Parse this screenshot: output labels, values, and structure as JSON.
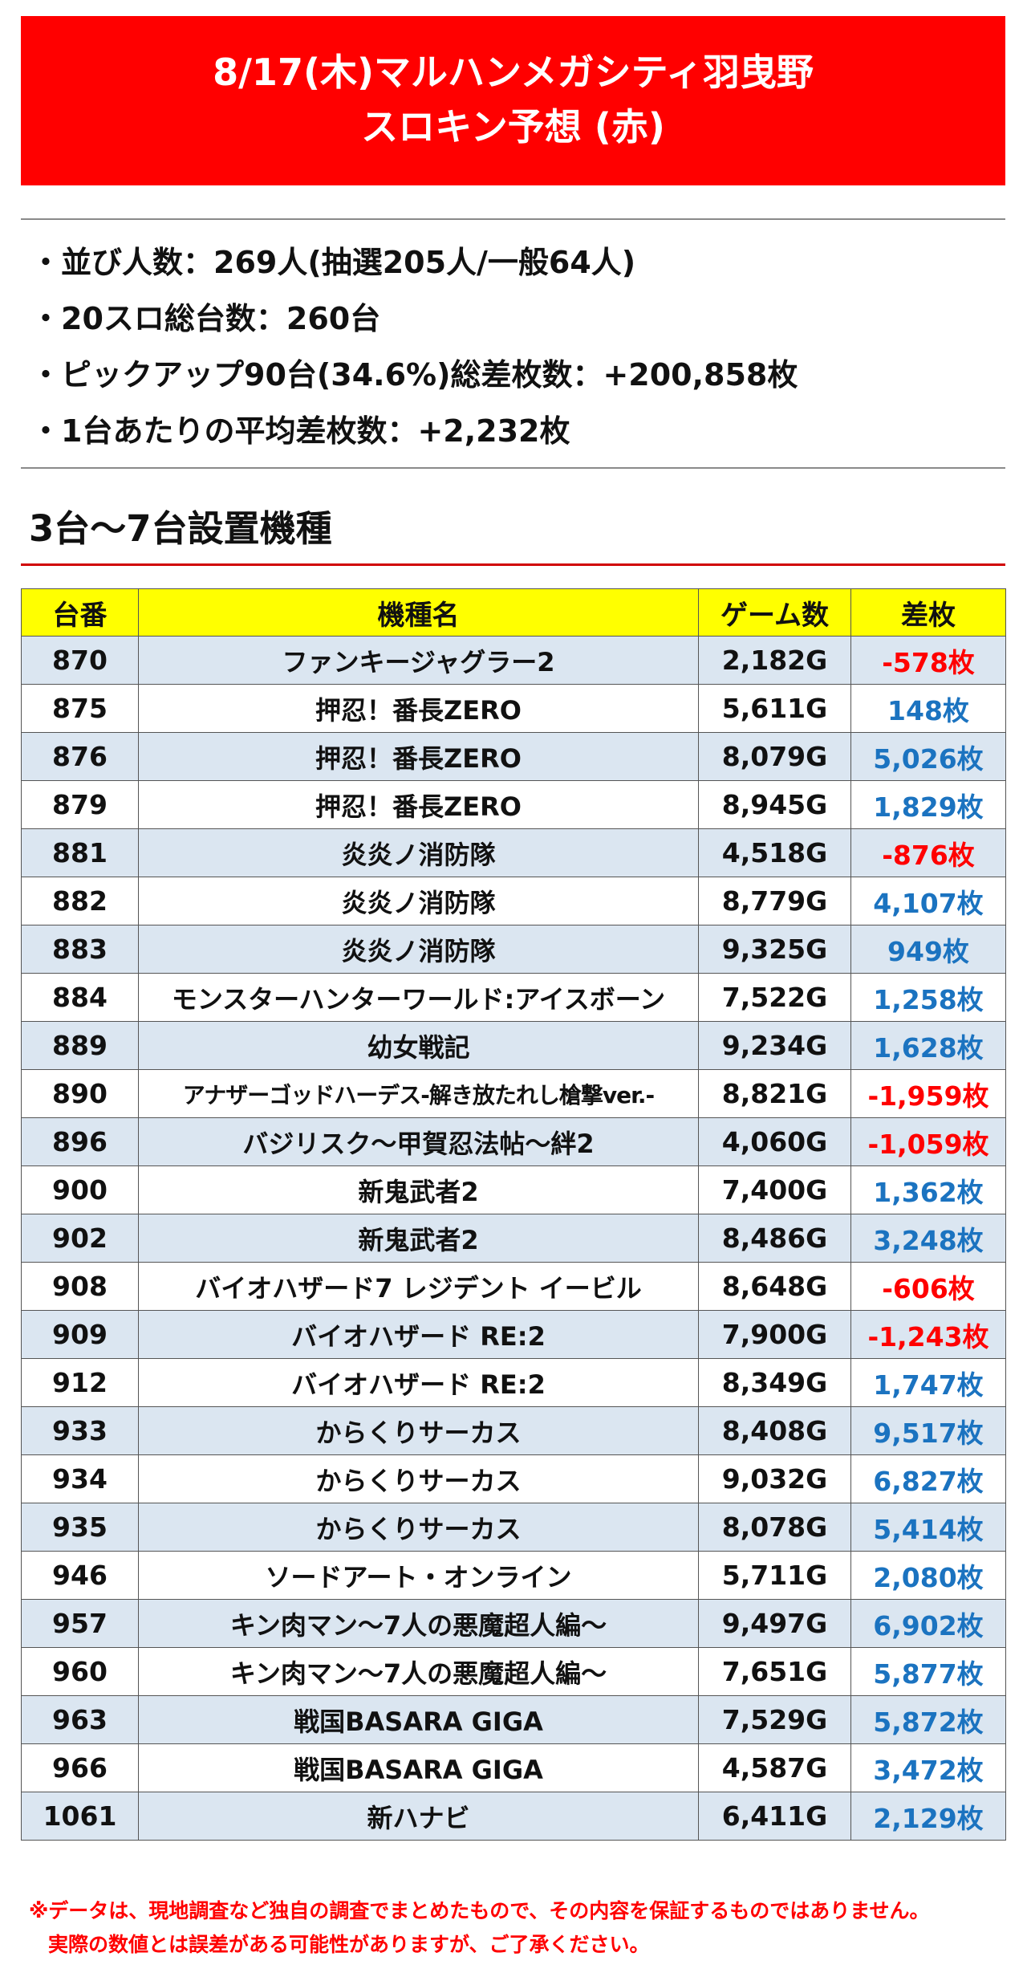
{
  "header": {
    "line1": "8/17(木)マルハンメガシティ羽曳野",
    "line2": "スロキン予想 (赤)"
  },
  "summary": [
    "・並び人数：269人(抽選205人/一般64人)",
    "・20スロ総台数：260台",
    "・ピックアップ90台(34.6%)総差枚数：+200,858枚",
    "・1台あたりの平均差枚数：+2,232枚"
  ],
  "section_title": "3台～7台設置機種",
  "table": {
    "headers": [
      "台番",
      "機種名",
      "ゲーム数",
      "差枚"
    ],
    "rows": [
      {
        "number": "870",
        "machine": "ファンキージャグラー2",
        "games": "2,182G",
        "diff": "-578枚",
        "sign": "neg"
      },
      {
        "number": "875",
        "machine": "押忍！番長ZERO",
        "games": "5,611G",
        "diff": "148枚",
        "sign": "pos"
      },
      {
        "number": "876",
        "machine": "押忍！番長ZERO",
        "games": "8,079G",
        "diff": "5,026枚",
        "sign": "pos"
      },
      {
        "number": "879",
        "machine": "押忍！番長ZERO",
        "games": "8,945G",
        "diff": "1,829枚",
        "sign": "pos"
      },
      {
        "number": "881",
        "machine": "炎炎ノ消防隊",
        "games": "4,518G",
        "diff": "-876枚",
        "sign": "neg"
      },
      {
        "number": "882",
        "machine": "炎炎ノ消防隊",
        "games": "8,779G",
        "diff": "4,107枚",
        "sign": "pos"
      },
      {
        "number": "883",
        "machine": "炎炎ノ消防隊",
        "games": "9,325G",
        "diff": "949枚",
        "sign": "pos"
      },
      {
        "number": "884",
        "machine": "モンスターハンターワールド:アイスボーン",
        "games": "7,522G",
        "diff": "1,258枚",
        "sign": "pos"
      },
      {
        "number": "889",
        "machine": "幼女戦記",
        "games": "9,234G",
        "diff": "1,628枚",
        "sign": "pos"
      },
      {
        "number": "890",
        "machine": "アナザーゴッドハーデス-解き放たれし槍撃ver.-",
        "games": "8,821G",
        "diff": "-1,959枚",
        "sign": "neg"
      },
      {
        "number": "896",
        "machine": "バジリスク～甲賀忍法帖～絆2",
        "games": "4,060G",
        "diff": "-1,059枚",
        "sign": "neg"
      },
      {
        "number": "900",
        "machine": "新鬼武者2",
        "games": "7,400G",
        "diff": "1,362枚",
        "sign": "pos"
      },
      {
        "number": "902",
        "machine": "新鬼武者2",
        "games": "8,486G",
        "diff": "3,248枚",
        "sign": "pos"
      },
      {
        "number": "908",
        "machine": "バイオハザード7 レジデント イービル",
        "games": "8,648G",
        "diff": "-606枚",
        "sign": "neg"
      },
      {
        "number": "909",
        "machine": "バイオハザード RE:2",
        "games": "7,900G",
        "diff": "-1,243枚",
        "sign": "neg"
      },
      {
        "number": "912",
        "machine": "バイオハザード RE:2",
        "games": "8,349G",
        "diff": "1,747枚",
        "sign": "pos"
      },
      {
        "number": "933",
        "machine": "からくりサーカス",
        "games": "8,408G",
        "diff": "9,517枚",
        "sign": "pos"
      },
      {
        "number": "934",
        "machine": "からくりサーカス",
        "games": "9,032G",
        "diff": "6,827枚",
        "sign": "pos"
      },
      {
        "number": "935",
        "machine": "からくりサーカス",
        "games": "8,078G",
        "diff": "5,414枚",
        "sign": "pos"
      },
      {
        "number": "946",
        "machine": "ソードアート・オンライン",
        "games": "5,711G",
        "diff": "2,080枚",
        "sign": "pos"
      },
      {
        "number": "957",
        "machine": "キン肉マン～7人の悪魔超人編～",
        "games": "9,497G",
        "diff": "6,902枚",
        "sign": "pos"
      },
      {
        "number": "960",
        "machine": "キン肉マン～7人の悪魔超人編～",
        "games": "7,651G",
        "diff": "5,877枚",
        "sign": "pos"
      },
      {
        "number": "963",
        "machine": "戦国BASARA GIGA",
        "games": "7,529G",
        "diff": "5,872枚",
        "sign": "pos"
      },
      {
        "number": "966",
        "machine": "戦国BASARA GIGA",
        "games": "4,587G",
        "diff": "3,472枚",
        "sign": "pos"
      },
      {
        "number": "1061",
        "machine": "新ハナビ",
        "games": "6,411G",
        "diff": "2,129枚",
        "sign": "pos"
      }
    ]
  },
  "notice": {
    "line1": "※データは、現地調査など独自の調査でまとめたもので、その内容を保証するものではありません。",
    "line2": "実際の数値とは誤差がある可能性がありますが、ご了承ください。"
  },
  "colors": {
    "banner": "#ff0000",
    "header_row": "#ffff00",
    "shaded_row": "#dbe6f1",
    "positive": "#1b73c0",
    "negative": "#ff0000"
  }
}
